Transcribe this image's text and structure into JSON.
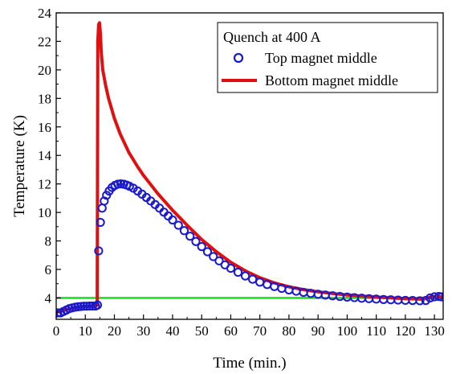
{
  "chart_data": {
    "type": "line",
    "title": "",
    "xlabel": "Time (min.)",
    "ylabel": "Temperature (K)",
    "xlim": [
      0,
      133
    ],
    "ylim": [
      2.5,
      24
    ],
    "xticks": [
      0,
      10,
      20,
      30,
      40,
      50,
      60,
      70,
      80,
      90,
      100,
      110,
      120,
      130
    ],
    "yticks": [
      4,
      6,
      8,
      10,
      12,
      14,
      16,
      18,
      20,
      22,
      24
    ],
    "grid": false,
    "legend": {
      "title": "Quench at 400 A",
      "placement": "top-right"
    },
    "series": [
      {
        "name": "Top magnet middle",
        "style": "open-circle",
        "color": "#1a1acc",
        "x": [
          0.5,
          1.5,
          2.5,
          3.5,
          4.5,
          5.5,
          6.5,
          7.5,
          8.5,
          9.5,
          10.5,
          11.5,
          12.5,
          13.5,
          14.2,
          14.6,
          15.2,
          15.8,
          16.5,
          17.3,
          18.2,
          19.2,
          20.2,
          21.2,
          22.2,
          23.2,
          24.2,
          25.2,
          26.5,
          28,
          29.5,
          31,
          32.5,
          34,
          35.5,
          37,
          38.5,
          40,
          42,
          44,
          46,
          48,
          50,
          52,
          54,
          56,
          58,
          60,
          62.5,
          65,
          67.5,
          70,
          72.5,
          75,
          77.5,
          80,
          82.5,
          85,
          87.5,
          90,
          92.5,
          95,
          97.5,
          100,
          102.5,
          105,
          107.5,
          110,
          112.5,
          115,
          117.5,
          120,
          122.5,
          125,
          127,
          128.5,
          130,
          131.5,
          132.5
        ],
        "y": [
          2.95,
          2.95,
          3.05,
          3.15,
          3.25,
          3.3,
          3.35,
          3.38,
          3.4,
          3.42,
          3.42,
          3.43,
          3.43,
          3.43,
          3.5,
          7.3,
          9.3,
          10.3,
          10.8,
          11.2,
          11.5,
          11.75,
          11.9,
          11.98,
          12.0,
          11.98,
          11.92,
          11.83,
          11.7,
          11.5,
          11.28,
          11.05,
          10.8,
          10.55,
          10.3,
          10.02,
          9.75,
          9.47,
          9.1,
          8.72,
          8.33,
          7.96,
          7.6,
          7.24,
          6.9,
          6.6,
          6.32,
          6.08,
          5.8,
          5.54,
          5.31,
          5.11,
          4.94,
          4.8,
          4.67,
          4.56,
          4.47,
          4.39,
          4.32,
          4.26,
          4.2,
          4.15,
          4.1,
          4.06,
          4.02,
          3.98,
          3.95,
          3.92,
          3.89,
          3.87,
          3.85,
          3.83,
          3.82,
          3.8,
          3.82,
          4.0,
          4.08,
          4.1,
          4.08
        ]
      },
      {
        "name": "Bottom magnet middle",
        "style": "line",
        "color": "#e01010",
        "x": [
          0,
          2,
          4,
          6,
          8,
          10,
          12,
          13.5,
          14.1,
          14.3,
          14.6,
          14.9,
          15.2,
          15.5,
          16,
          17,
          18,
          20,
          22,
          25,
          28,
          30,
          35,
          40,
          45,
          50,
          55,
          60,
          65,
          70,
          75,
          80,
          85,
          90,
          95,
          100,
          105,
          110,
          115,
          120,
          125,
          127,
          128.5,
          130,
          132
        ],
        "y": [
          3.0,
          3.1,
          3.2,
          3.3,
          3.35,
          3.4,
          3.42,
          3.45,
          3.5,
          22.0,
          23.2,
          23.3,
          22.5,
          21.2,
          20.0,
          18.9,
          18.0,
          16.6,
          15.5,
          14.2,
          13.2,
          12.6,
          11.3,
          10.15,
          9.1,
          8.1,
          7.25,
          6.5,
          5.9,
          5.42,
          5.05,
          4.78,
          4.58,
          4.43,
          4.31,
          4.21,
          4.13,
          4.06,
          4.0,
          3.95,
          3.92,
          3.95,
          4.05,
          4.1,
          4.08
        ]
      },
      {
        "name": "",
        "style": "line",
        "color": "#22dd22",
        "x": [
          0,
          133
        ],
        "y": [
          4.0,
          4.0
        ]
      }
    ]
  }
}
